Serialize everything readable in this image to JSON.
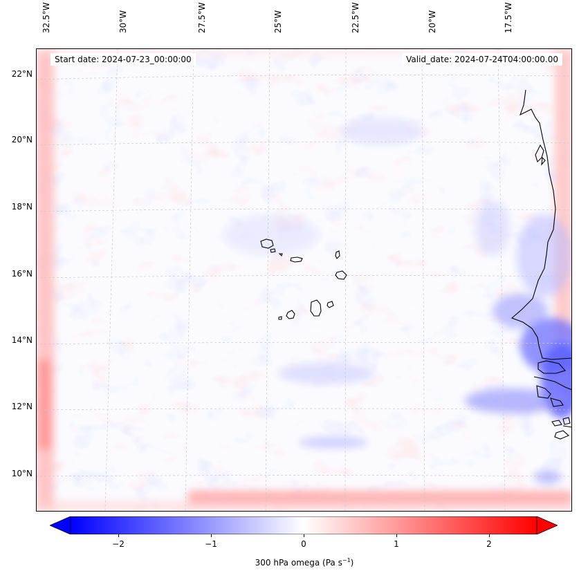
{
  "map": {
    "start_date": "Start date: 2024-07-23_00:00:00",
    "valid_date": "Valid_date: 2024-07-24T04:00:00.00",
    "lon_labels": [
      "32.5°W",
      "30°W",
      "27.5°W",
      "25°W",
      "22.5°W",
      "20°W",
      "17.5°W"
    ],
    "lat_labels": [
      "22°N",
      "20°N",
      "18°N",
      "16°N",
      "14°N",
      "12°N",
      "10°N"
    ],
    "variable": "300 hPa omega",
    "units": "Pa s",
    "units_exponent": "−1",
    "region": "Cabo Verde islands and West African coast"
  },
  "colorbar": {
    "ticks": [
      "−2",
      "−1",
      "0",
      "1",
      "2"
    ],
    "min": -2.6,
    "max": 2.6,
    "extend": "both",
    "colormap": "bwr",
    "low_color": "#0000ff",
    "mid_color": "#ffffff",
    "high_color": "#ff0000"
  },
  "colors": {
    "coast": "#000000",
    "grid": "#b0b0b0"
  }
}
